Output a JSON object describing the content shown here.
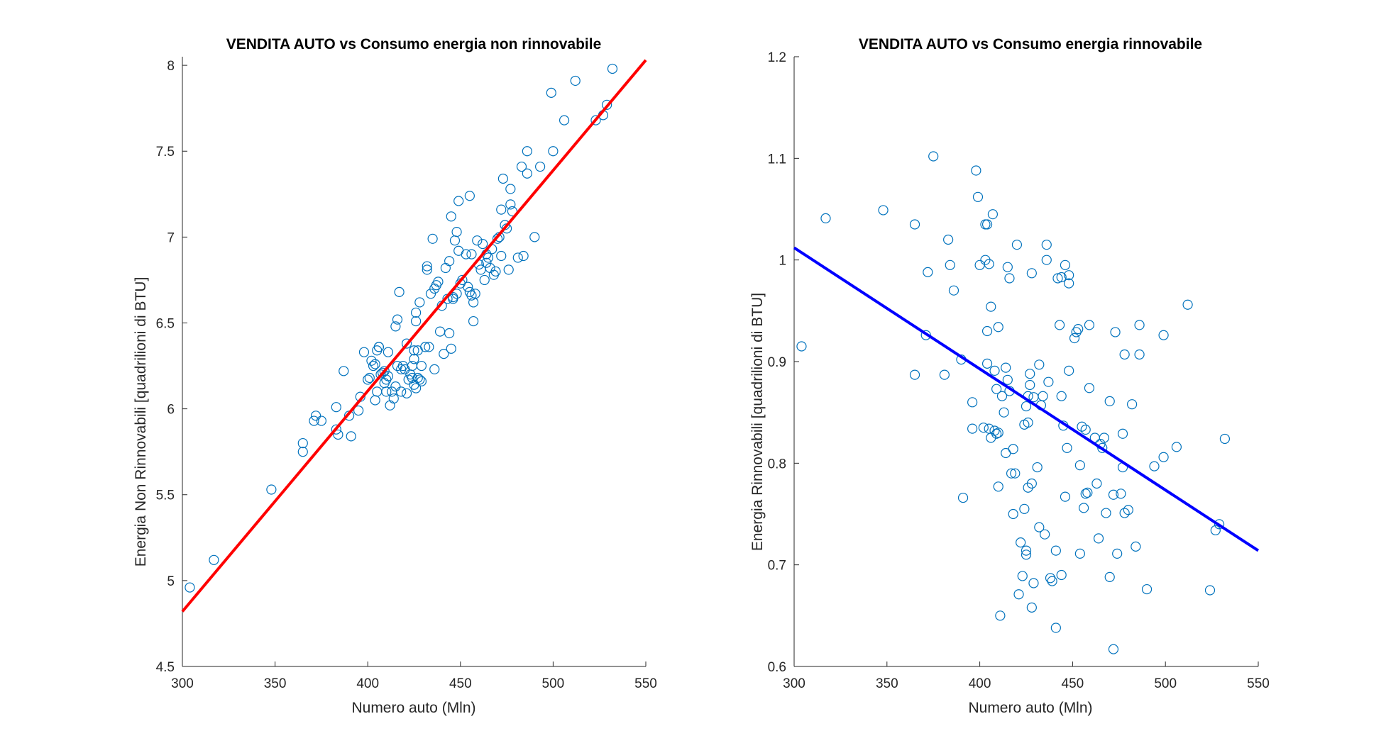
{
  "colors": {
    "marker": "#0072BD",
    "fit_left": "#FF0000",
    "fit_right": "#0000FF",
    "axis": "#262626"
  },
  "chart_data": [
    {
      "type": "scatter",
      "title": "VENDITA AUTO vs Consumo energia non rinnovabile",
      "xlabel": "Numero auto (Mln)",
      "ylabel": "Energia Non Rinnovabili [quadrilioni di BTU]",
      "xlim": [
        300,
        550
      ],
      "ylim": [
        4.5,
        8.05
      ],
      "xticks": [
        "300",
        "350",
        "400",
        "450",
        "500",
        "550"
      ],
      "yticks": [
        "4.5",
        "5",
        "5.5",
        "6",
        "6.5",
        "7",
        "7.5",
        "8"
      ],
      "grid": false,
      "marker": "circle",
      "fit_line": {
        "x": [
          300,
          550
        ],
        "y": [
          4.82,
          8.03
        ]
      },
      "points": [
        [
          304,
          4.96
        ],
        [
          317,
          5.12
        ],
        [
          348,
          5.53
        ],
        [
          365,
          5.8
        ],
        [
          365,
          5.75
        ],
        [
          371,
          5.93
        ],
        [
          372,
          5.96
        ],
        [
          375,
          5.93
        ],
        [
          383,
          5.88
        ],
        [
          383,
          6.01
        ],
        [
          384,
          5.85
        ],
        [
          387,
          6.22
        ],
        [
          390,
          5.96
        ],
        [
          391,
          5.84
        ],
        [
          395,
          5.99
        ],
        [
          396,
          6.07
        ],
        [
          398,
          6.33
        ],
        [
          400,
          6.17
        ],
        [
          401,
          6.18
        ],
        [
          402,
          6.28
        ],
        [
          403,
          6.25
        ],
        [
          404,
          6.05
        ],
        [
          404,
          6.26
        ],
        [
          405,
          6.34
        ],
        [
          405,
          6.1
        ],
        [
          406,
          6.36
        ],
        [
          406,
          6.36
        ],
        [
          407,
          6.2
        ],
        [
          408,
          6.21
        ],
        [
          409,
          6.22
        ],
        [
          409,
          6.15
        ],
        [
          410,
          6.1
        ],
        [
          410,
          6.17
        ],
        [
          411,
          6.19
        ],
        [
          411,
          6.33
        ],
        [
          412,
          6.02
        ],
        [
          413,
          6.1
        ],
        [
          414,
          6.06
        ],
        [
          415,
          6.13
        ],
        [
          415,
          6.48
        ],
        [
          416,
          6.25
        ],
        [
          416,
          6.52
        ],
        [
          417,
          6.68
        ],
        [
          418,
          6.1
        ],
        [
          418,
          6.23
        ],
        [
          419,
          6.25
        ],
        [
          420,
          6.23
        ],
        [
          421,
          6.09
        ],
        [
          421,
          6.38
        ],
        [
          422,
          6.17
        ],
        [
          423,
          6.2
        ],
        [
          424,
          6.25
        ],
        [
          424,
          6.18
        ],
        [
          425,
          6.14
        ],
        [
          425,
          6.34
        ],
        [
          425,
          6.29
        ],
        [
          426,
          6.12
        ],
        [
          426,
          6.56
        ],
        [
          426,
          6.51
        ],
        [
          427,
          6.18
        ],
        [
          427,
          6.34
        ],
        [
          428,
          6.17
        ],
        [
          428,
          6.62
        ],
        [
          429,
          6.16
        ],
        [
          429,
          6.25
        ],
        [
          431,
          6.36
        ],
        [
          432,
          6.81
        ],
        [
          432,
          6.83
        ],
        [
          433,
          6.36
        ],
        [
          434,
          6.67
        ],
        [
          435,
          6.99
        ],
        [
          436,
          6.7
        ],
        [
          436,
          6.23
        ],
        [
          437,
          6.72
        ],
        [
          438,
          6.74
        ],
        [
          439,
          6.45
        ],
        [
          440,
          6.6
        ],
        [
          441,
          6.32
        ],
        [
          442,
          6.82
        ],
        [
          443,
          6.64
        ],
        [
          444,
          6.86
        ],
        [
          444,
          6.44
        ],
        [
          445,
          7.12
        ],
        [
          445,
          6.35
        ],
        [
          446,
          6.64
        ],
        [
          446,
          6.65
        ],
        [
          447,
          6.98
        ],
        [
          448,
          6.67
        ],
        [
          448,
          7.03
        ],
        [
          449,
          7.21
        ],
        [
          449,
          6.92
        ],
        [
          450,
          6.73
        ],
        [
          451,
          6.75
        ],
        [
          453,
          6.9
        ],
        [
          454,
          6.71
        ],
        [
          455,
          7.24
        ],
        [
          455,
          6.68
        ],
        [
          456,
          6.9
        ],
        [
          456,
          6.66
        ],
        [
          457,
          6.62
        ],
        [
          457,
          6.51
        ],
        [
          458,
          6.67
        ],
        [
          459,
          6.98
        ],
        [
          460,
          6.84
        ],
        [
          461,
          6.81
        ],
        [
          462,
          6.96
        ],
        [
          463,
          6.75
        ],
        [
          464,
          6.85
        ],
        [
          464,
          6.9
        ],
        [
          465,
          6.88
        ],
        [
          466,
          6.82
        ],
        [
          467,
          6.93
        ],
        [
          468,
          6.78
        ],
        [
          469,
          6.8
        ],
        [
          470,
          6.99
        ],
        [
          471,
          7.0
        ],
        [
          472,
          6.89
        ],
        [
          472,
          7.16
        ],
        [
          473,
          7.34
        ],
        [
          474,
          7.07
        ],
        [
          475,
          7.05
        ],
        [
          476,
          6.81
        ],
        [
          477,
          7.19
        ],
        [
          477,
          7.28
        ],
        [
          478,
          7.15
        ],
        [
          481,
          6.88
        ],
        [
          483,
          7.41
        ],
        [
          484,
          6.89
        ],
        [
          486,
          7.37
        ],
        [
          486,
          7.5
        ],
        [
          490,
          7.0
        ],
        [
          493,
          7.41
        ],
        [
          499,
          7.84
        ],
        [
          500,
          7.5
        ],
        [
          506,
          7.68
        ],
        [
          512,
          7.91
        ],
        [
          523,
          7.68
        ],
        [
          527,
          7.71
        ],
        [
          529,
          7.77
        ],
        [
          532,
          7.98
        ]
      ]
    },
    {
      "type": "scatter",
      "title": "VENDITA AUTO vs Consumo energia rinnovabile",
      "xlabel": "Numero auto (Mln)",
      "ylabel": "Energia Rinnovabili [quadrilioni di BTU]",
      "xlim": [
        300,
        550
      ],
      "ylim": [
        0.6,
        1.2
      ],
      "xticks": [
        "300",
        "350",
        "400",
        "450",
        "500",
        "550"
      ],
      "yticks": [
        "0.6",
        "0.7",
        "0.8",
        "0.9",
        "1",
        "1.1",
        "1.2"
      ],
      "grid": false,
      "marker": "circle",
      "fit_line": {
        "x": [
          300,
          550
        ],
        "y": [
          1.012,
          0.714
        ]
      },
      "points": [
        [
          304,
          0.915
        ],
        [
          317,
          1.041
        ],
        [
          348,
          1.049
        ],
        [
          365,
          1.035
        ],
        [
          365,
          0.887
        ],
        [
          371,
          0.926
        ],
        [
          372,
          0.988
        ],
        [
          375,
          1.102
        ],
        [
          381,
          0.887
        ],
        [
          383,
          1.02
        ],
        [
          384,
          0.995
        ],
        [
          386,
          0.97
        ],
        [
          390,
          0.902
        ],
        [
          391,
          0.766
        ],
        [
          396,
          0.86
        ],
        [
          396,
          0.834
        ],
        [
          398,
          1.088
        ],
        [
          399,
          1.062
        ],
        [
          400,
          0.995
        ],
        [
          402,
          0.835
        ],
        [
          403,
          1.035
        ],
        [
          403,
          1.0
        ],
        [
          404,
          1.035
        ],
        [
          404,
          0.898
        ],
        [
          404,
          0.93
        ],
        [
          405,
          0.996
        ],
        [
          405,
          0.834
        ],
        [
          406,
          0.954
        ],
        [
          406,
          0.825
        ],
        [
          407,
          1.045
        ],
        [
          408,
          0.891
        ],
        [
          408,
          0.832
        ],
        [
          409,
          0.829
        ],
        [
          409,
          0.873
        ],
        [
          410,
          0.934
        ],
        [
          410,
          0.777
        ],
        [
          410,
          0.83
        ],
        [
          411,
          0.65
        ],
        [
          412,
          0.866
        ],
        [
          413,
          0.85
        ],
        [
          414,
          0.81
        ],
        [
          414,
          0.894
        ],
        [
          415,
          0.882
        ],
        [
          415,
          0.993
        ],
        [
          416,
          0.982
        ],
        [
          416,
          0.871
        ],
        [
          417,
          0.79
        ],
        [
          418,
          0.75
        ],
        [
          418,
          0.814
        ],
        [
          419,
          0.79
        ],
        [
          420,
          1.015
        ],
        [
          421,
          0.671
        ],
        [
          422,
          0.722
        ],
        [
          423,
          0.689
        ],
        [
          424,
          0.838
        ],
        [
          424,
          0.755
        ],
        [
          425,
          0.714
        ],
        [
          425,
          0.71
        ],
        [
          425,
          0.856
        ],
        [
          426,
          0.776
        ],
        [
          426,
          0.84
        ],
        [
          426,
          0.866
        ],
        [
          427,
          0.877
        ],
        [
          427,
          0.888
        ],
        [
          428,
          0.987
        ],
        [
          428,
          0.658
        ],
        [
          428,
          0.78
        ],
        [
          429,
          0.682
        ],
        [
          429,
          0.865
        ],
        [
          431,
          0.796
        ],
        [
          432,
          0.897
        ],
        [
          432,
          0.737
        ],
        [
          433,
          0.857
        ],
        [
          434,
          0.866
        ],
        [
          435,
          0.73
        ],
        [
          436,
          1.015
        ],
        [
          436,
          1.0
        ],
        [
          437,
          0.88
        ],
        [
          438,
          0.687
        ],
        [
          439,
          0.684
        ],
        [
          441,
          0.638
        ],
        [
          441,
          0.714
        ],
        [
          442,
          0.982
        ],
        [
          443,
          0.936
        ],
        [
          444,
          0.866
        ],
        [
          444,
          0.983
        ],
        [
          444,
          0.69
        ],
        [
          445,
          0.837
        ],
        [
          446,
          0.767
        ],
        [
          446,
          0.995
        ],
        [
          447,
          0.815
        ],
        [
          448,
          0.985
        ],
        [
          448,
          0.977
        ],
        [
          448,
          0.891
        ],
        [
          451,
          0.923
        ],
        [
          452,
          0.929
        ],
        [
          453,
          0.932
        ],
        [
          454,
          0.711
        ],
        [
          454,
          0.798
        ],
        [
          455,
          0.836
        ],
        [
          456,
          0.756
        ],
        [
          457,
          0.77
        ],
        [
          457,
          0.833
        ],
        [
          458,
          0.771
        ],
        [
          459,
          0.936
        ],
        [
          459,
          0.874
        ],
        [
          462,
          0.825
        ],
        [
          463,
          0.78
        ],
        [
          464,
          0.726
        ],
        [
          465,
          0.819
        ],
        [
          466,
          0.815
        ],
        [
          467,
          0.825
        ],
        [
          468,
          0.751
        ],
        [
          470,
          0.688
        ],
        [
          470,
          0.861
        ],
        [
          472,
          0.769
        ],
        [
          472,
          0.617
        ],
        [
          473,
          0.929
        ],
        [
          474,
          0.711
        ],
        [
          476,
          0.77
        ],
        [
          477,
          0.796
        ],
        [
          477,
          0.829
        ],
        [
          478,
          0.907
        ],
        [
          478,
          0.751
        ],
        [
          480,
          0.754
        ],
        [
          482,
          0.858
        ],
        [
          484,
          0.718
        ],
        [
          486,
          0.936
        ],
        [
          486,
          0.907
        ],
        [
          490,
          0.676
        ],
        [
          494,
          0.797
        ],
        [
          499,
          0.926
        ],
        [
          499,
          0.806
        ],
        [
          506,
          0.816
        ],
        [
          512,
          0.956
        ],
        [
          524,
          0.675
        ],
        [
          527,
          0.734
        ],
        [
          529,
          0.74
        ],
        [
          532,
          0.824
        ]
      ]
    }
  ]
}
